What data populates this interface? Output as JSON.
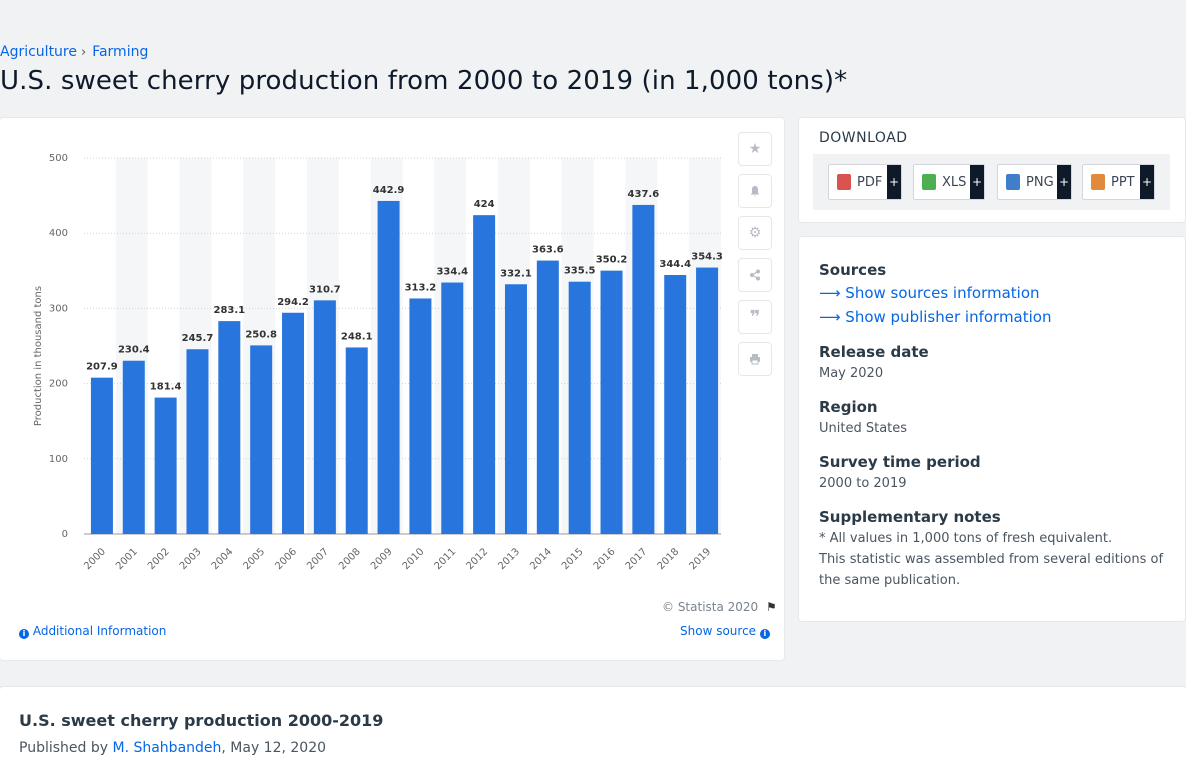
{
  "breadcrumb": {
    "items": [
      "Agriculture",
      "Farming"
    ],
    "separator": "›"
  },
  "page_title": "U.S. sweet cherry production from 2000 to 2019 (in 1,000 tons)*",
  "chart_data": {
    "type": "bar",
    "title": "",
    "xlabel": "",
    "ylabel": "Production in thousand tons",
    "ylim": [
      0,
      500
    ],
    "yticks": [
      0,
      100,
      200,
      300,
      400,
      500
    ],
    "grid": true,
    "categories": [
      "2000",
      "2001",
      "2002",
      "2003",
      "2004",
      "2005",
      "2006",
      "2007",
      "2008",
      "2009",
      "2010",
      "2011",
      "2012",
      "2013",
      "2014",
      "2015",
      "2016",
      "2017",
      "2018",
      "2019"
    ],
    "values": [
      207.9,
      230.4,
      181.4,
      245.7,
      283.1,
      250.8,
      294.2,
      310.7,
      248.1,
      442.9,
      313.2,
      334.4,
      424,
      332.1,
      363.6,
      335.5,
      350.2,
      437.6,
      344.4,
      354.3
    ],
    "bar_color": "#2876dd",
    "stripe_color": "#f5f6f7"
  },
  "chart_footer": {
    "copyright": "© Statista 2020",
    "additional_info": "Additional Information",
    "show_source": "Show source"
  },
  "tool_icons": [
    "star-icon",
    "bell-icon",
    "gear-icon",
    "share-icon",
    "quote-icon",
    "print-icon"
  ],
  "download": {
    "title": "DOWNLOAD",
    "formats": [
      {
        "label": "PDF",
        "color": "#d9534f"
      },
      {
        "label": "XLS",
        "color": "#4caf50"
      },
      {
        "label": "PNG",
        "color": "#3f7fc9"
      },
      {
        "label": "PPT",
        "color": "#e08a3c"
      }
    ],
    "plus": "+"
  },
  "info": {
    "sources_label": "Sources",
    "show_sources": "Show sources information",
    "show_publisher": "Show publisher information",
    "release_label": "Release date",
    "release_value": "May 2020",
    "region_label": "Region",
    "region_value": "United States",
    "period_label": "Survey time period",
    "period_value": "2000 to 2019",
    "notes_label": "Supplementary notes",
    "notes_line1": "* All values in 1,000 tons of fresh equivalent.",
    "notes_line2": "This statistic was assembled from several editions of the same publication."
  },
  "bottom": {
    "title": "U.S. sweet cherry production 2000-2019",
    "published_prefix": "Published by",
    "author": "M. Shahbandeh",
    "date": ", May 12, 2020"
  }
}
